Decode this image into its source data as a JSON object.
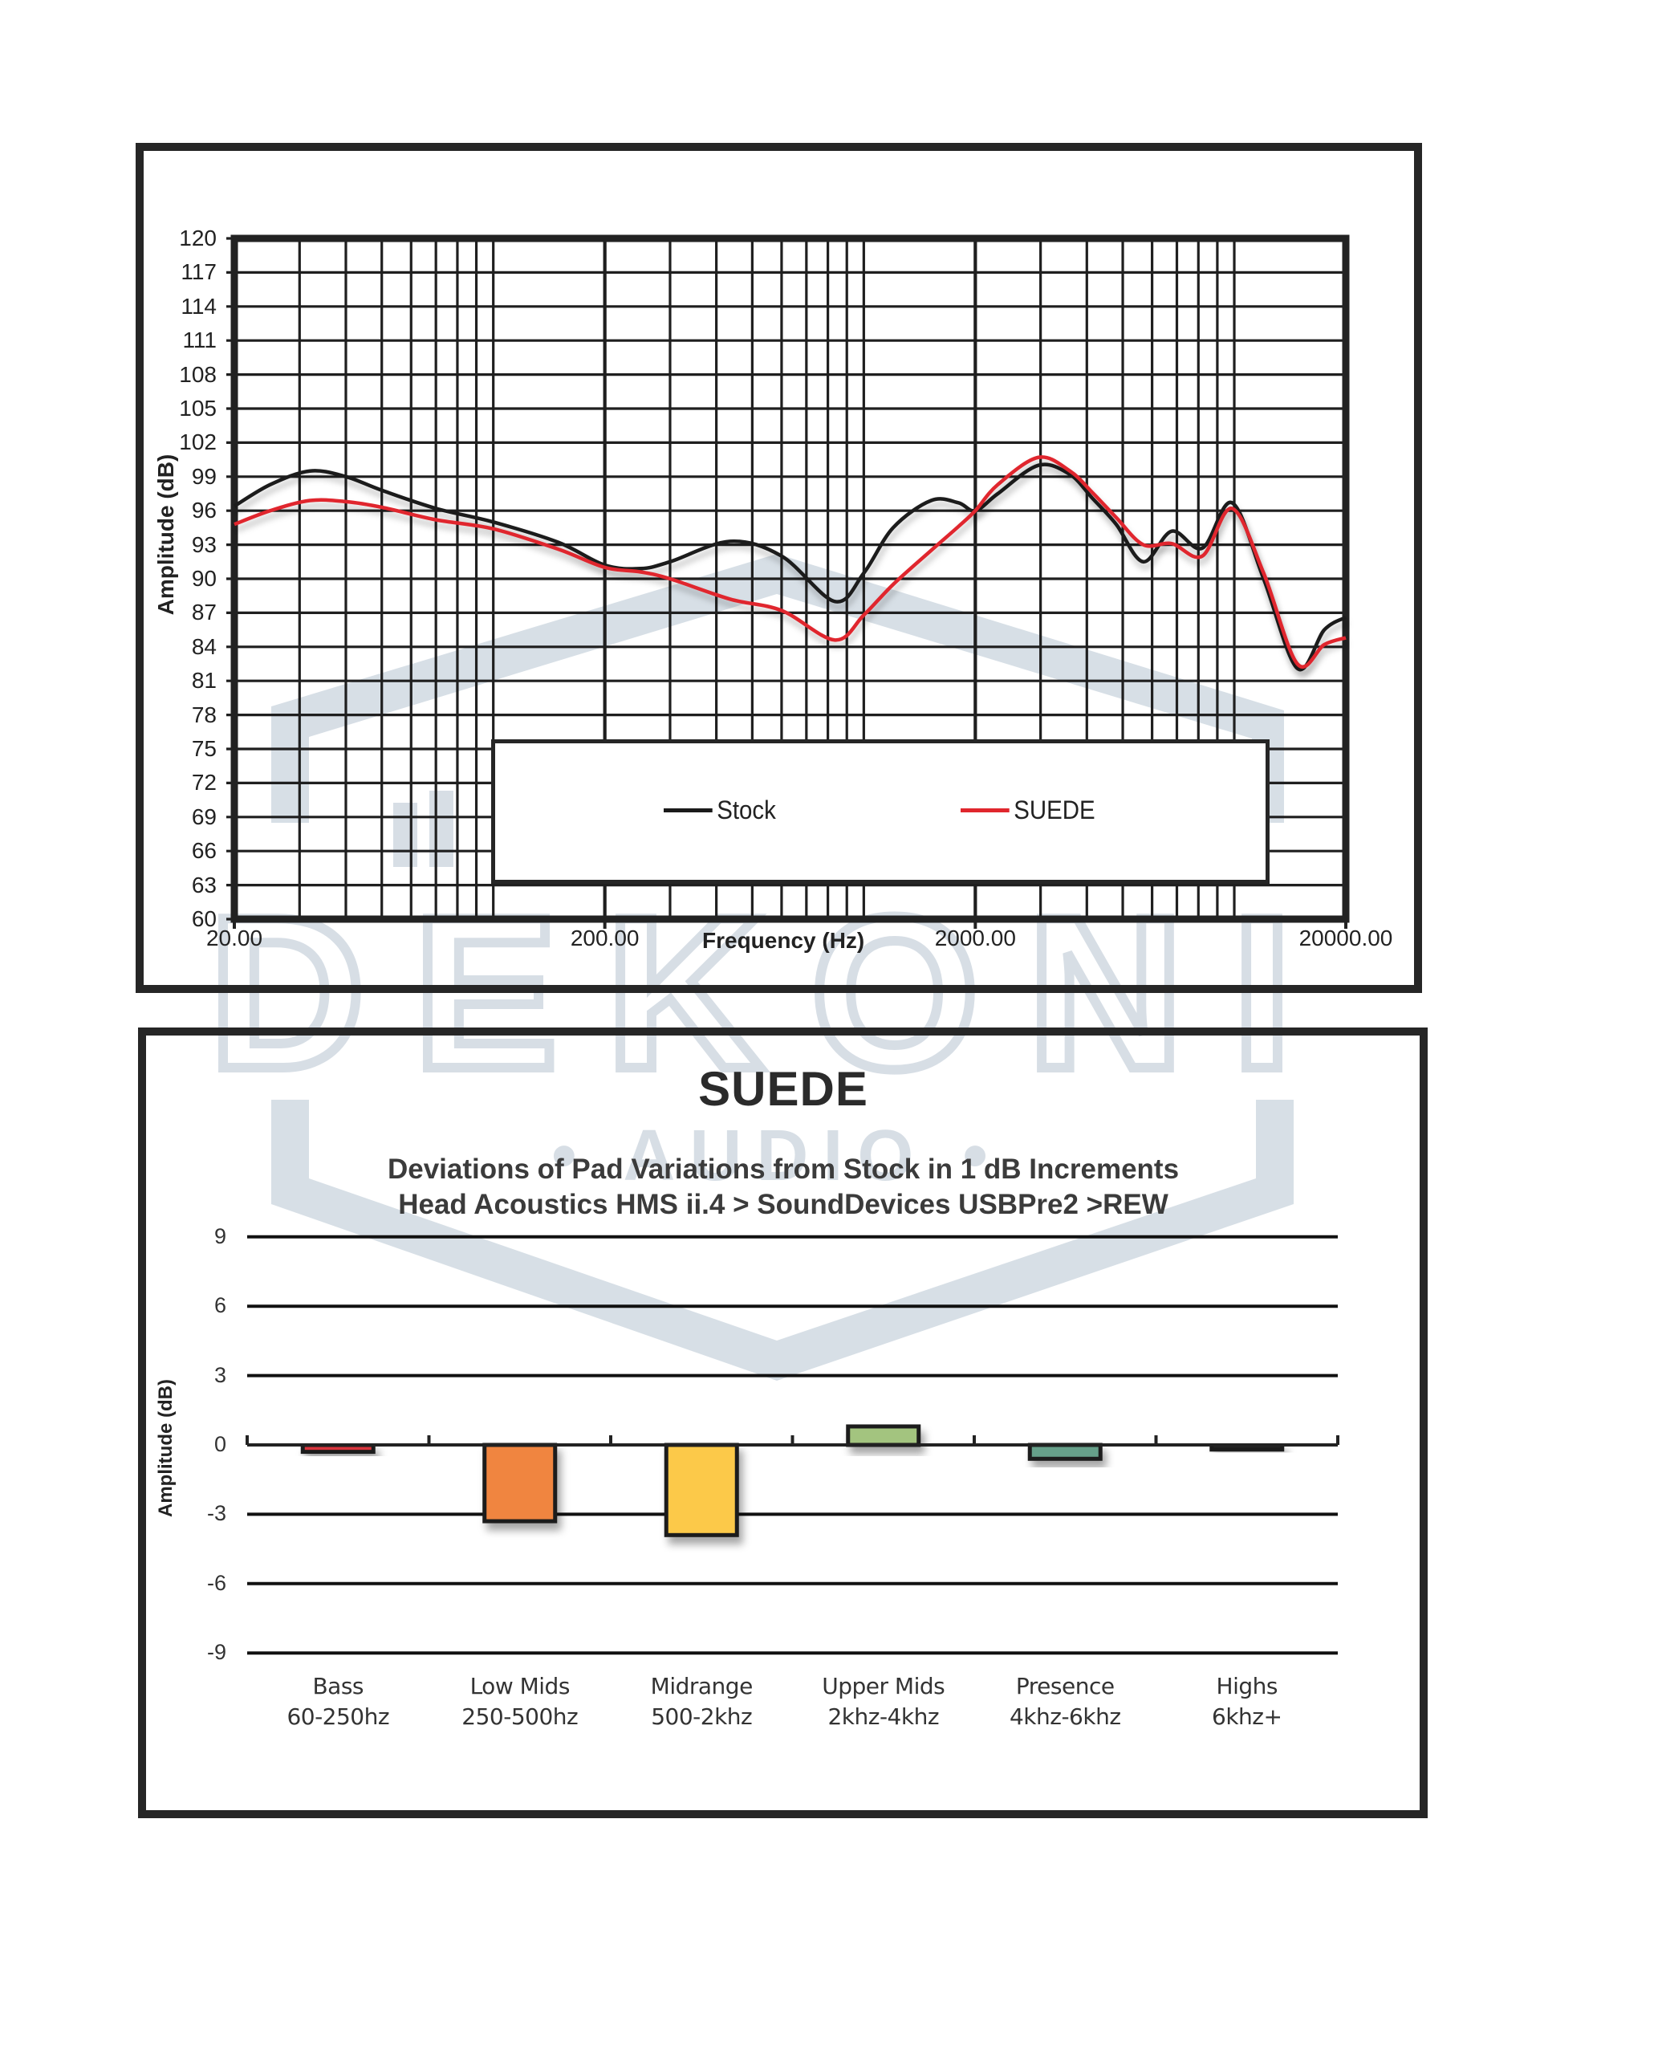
{
  "colors": {
    "frame": "#262626",
    "grid": "#1f1f1f",
    "stock": "#1a1a1a",
    "suede": "#e0262d",
    "watermark": "#d3dbe3"
  },
  "watermark": {
    "brand": "DEKONI",
    "sub": "AUDIO"
  },
  "frequency_chart": {
    "y_axis_title": "Amplitude (dB)",
    "x_axis_title": "Frequency (Hz)",
    "y_ticks": [
      "120",
      "117",
      "114",
      "111",
      "108",
      "105",
      "102",
      "99",
      "96",
      "93",
      "90",
      "87",
      "84",
      "81",
      "78",
      "75",
      "72",
      "69",
      "66",
      "63",
      "60"
    ],
    "x_ticks": [
      "20.00",
      "200.00",
      "2000.00",
      "20000.00"
    ],
    "legend": [
      {
        "label": "Stock",
        "color": "#1a1a1a"
      },
      {
        "label": "SUEDE",
        "color": "#e0262d"
      }
    ]
  },
  "deviation_chart": {
    "title": "SUEDE",
    "subtitle_line1": "Deviations of Pad Variations from Stock in 1 dB Increments",
    "subtitle_line2": "Head Acoustics HMS ii.4 > SoundDevices USBPre2 >REW",
    "y_axis_title": "Amplitude (dB)",
    "y_ticks": [
      "9",
      "6",
      "3",
      "0",
      "-3",
      "-6",
      "-9"
    ],
    "categories": [
      {
        "name": "Bass",
        "range": "60-250hz"
      },
      {
        "name": "Low Mids",
        "range": "250-500hz"
      },
      {
        "name": "Midrange",
        "range": "500-2khz"
      },
      {
        "name": "Upper Mids",
        "range": "2khz-4khz"
      },
      {
        "name": "Presence",
        "range": "4khz-6khz"
      },
      {
        "name": "Highs",
        "range": "6khz+"
      }
    ]
  },
  "chart_data": [
    {
      "type": "line",
      "title": "",
      "xlabel": "Frequency (Hz)",
      "ylabel": "Amplitude (dB)",
      "xscale": "log",
      "xlim": [
        20,
        20000
      ],
      "ylim": [
        60,
        120
      ],
      "yticks_step": 3,
      "grid": true,
      "legend_position": "inside-bottom",
      "x": [
        20,
        25,
        32,
        40,
        50,
        70,
        100,
        150,
        200,
        250,
        300,
        436,
        600,
        836,
        1000,
        1200,
        1520,
        1800,
        2000,
        2300,
        2960,
        3600,
        4140,
        4800,
        5680,
        6780,
        8200,
        9860,
        12000,
        14800,
        17500,
        20000
      ],
      "series": [
        {
          "name": "Stock",
          "color": "#1a1a1a",
          "values": [
            96.4,
            98.3,
            99.5,
            99.0,
            97.8,
            96.2,
            95.0,
            93.2,
            91.2,
            90.9,
            91.5,
            93.3,
            92.0,
            88.0,
            90.5,
            94.5,
            96.9,
            96.7,
            96.0,
            97.5,
            100.0,
            99.2,
            97.1,
            94.8,
            91.5,
            94.2,
            92.7,
            96.7,
            90.0,
            82.1,
            85.5,
            86.6
          ]
        },
        {
          "name": "SUEDE",
          "color": "#e0262d",
          "values": [
            94.8,
            96.0,
            96.9,
            96.8,
            96.3,
            95.2,
            94.4,
            92.6,
            91.0,
            90.6,
            90.0,
            88.2,
            87.2,
            84.6,
            86.8,
            89.5,
            92.5,
            94.6,
            96.0,
            98.3,
            100.7,
            99.5,
            97.6,
            95.4,
            93.0,
            93.1,
            92.0,
            96.2,
            90.5,
            82.5,
            84.2,
            84.8
          ]
        }
      ]
    },
    {
      "type": "bar",
      "title": "SUEDE",
      "subtitle": "Deviations of Pad Variations from Stock in 1 dB Increments / Head Acoustics HMS ii.4 > SoundDevices USBPre2 >REW",
      "xlabel": "",
      "ylabel": "Amplitude (dB)",
      "ylim": [
        -9,
        9
      ],
      "yticks": [
        9,
        6,
        3,
        0,
        -3,
        -6,
        -9
      ],
      "grid": true,
      "categories": [
        "Bass 60-250hz",
        "Low Mids 250-500hz",
        "Midrange 500-2khz",
        "Upper Mids 2khz-4khz",
        "Presence 4khz-6khz",
        "Highs 6khz+"
      ],
      "values": [
        -0.3,
        -3.3,
        -3.9,
        0.8,
        -0.6,
        -0.2
      ],
      "colors": [
        "#d9343c",
        "#f08540",
        "#fcc94a",
        "#a3c47f",
        "#66a08a",
        "#2e2e2e"
      ]
    }
  ]
}
